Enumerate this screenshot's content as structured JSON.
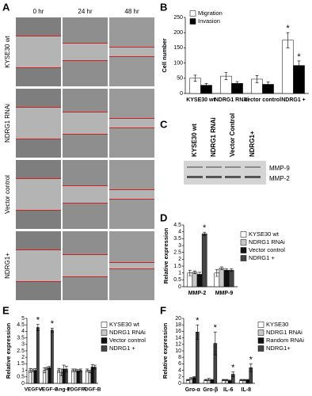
{
  "panel_labels": [
    "A",
    "B",
    "C",
    "D",
    "E",
    "F"
  ],
  "panel_a": {
    "columns": [
      "0 hr",
      "24 hr",
      "48 hr"
    ],
    "rows": [
      "KYSE30 wt",
      "NDRG1 RNAi",
      "Vector control",
      "NDRG1+"
    ]
  },
  "panel_c": {
    "lanes": [
      "KYSE30 wt",
      "NDRG1 RNAi",
      "Vector Control",
      "NDRG1+"
    ],
    "bands": [
      "MMP-9",
      "MMP-2"
    ]
  },
  "chart_data": [
    {
      "type": "bar",
      "y_label": "Cell number",
      "legend": "upper left",
      "categories": [
        "KYSE30 wt",
        "NDRG1 RNAi",
        "Vector control",
        "NDRG1 +"
      ],
      "series": [
        {
          "name": "Migration",
          "color": "#ffffff",
          "values": [
            50,
            57,
            47,
            175
          ],
          "errors": [
            10,
            12,
            12,
            25
          ]
        },
        {
          "name": "Invasion",
          "color": "#000000",
          "values": [
            27,
            33,
            30,
            92
          ],
          "errors": [
            6,
            6,
            8,
            15
          ]
        }
      ],
      "ylim": [
        0,
        250
      ],
      "yticks": [
        0,
        50,
        100,
        150,
        200,
        250
      ],
      "annotations": [
        {
          "text": "*",
          "category": "NDRG1 +",
          "series": "Migration"
        },
        {
          "text": "*",
          "category": "NDRG1 +",
          "series": "Invasion"
        }
      ]
    },
    {
      "type": "bar",
      "y_label": "Relative expression",
      "legend": "right",
      "categories": [
        "MMP-2",
        "MMP-9"
      ],
      "series": [
        {
          "name": "KYSE30 wt",
          "color": "#ffffff",
          "values": [
            1.0,
            1.0
          ],
          "errors": [
            0.2,
            0.25
          ]
        },
        {
          "name": "NDRG1 RNAi",
          "color": "#c8c8c8",
          "values": [
            1.05,
            1.35
          ],
          "errors": [
            0.1,
            0.1
          ]
        },
        {
          "name": "Vector control",
          "color": "#111111",
          "values": [
            0.9,
            1.2
          ],
          "errors": [
            0.15,
            0.1
          ]
        },
        {
          "name": "NDRG1 +",
          "color": "#444444",
          "values": [
            3.85,
            1.2
          ],
          "errors": [
            0.12,
            0.1
          ]
        }
      ],
      "ylim": [
        0,
        4.5
      ],
      "yticks": [
        0,
        0.5,
        1,
        1.5,
        2,
        2.5,
        3,
        3.5,
        4,
        4.5
      ],
      "annotations": [
        {
          "text": "*",
          "category": "MMP-2",
          "series": "NDRG1 +"
        }
      ]
    },
    {
      "type": "bar",
      "y_label": "Relative expression",
      "legend": "right",
      "categories": [
        "VEGF-A",
        "VEGF-C",
        "Ang-1",
        "PDGF-A",
        "PDGF-B"
      ],
      "series": [
        {
          "name": "KYSE30 wt",
          "color": "#ffffff",
          "values": [
            1,
            1,
            1,
            1,
            1
          ],
          "errors": [
            0.15,
            0.2,
            0.15,
            0.1,
            0.1
          ]
        },
        {
          "name": "NDRG1 RNAi",
          "color": "#c8c8c8",
          "values": [
            1,
            1.15,
            0.85,
            1,
            0.9
          ],
          "errors": [
            0.1,
            0.1,
            0.25,
            0.1,
            0.1
          ]
        },
        {
          "name": "Vector control",
          "color": "#111111",
          "values": [
            1,
            1.2,
            1.1,
            0.95,
            1.25
          ],
          "errors": [
            0.15,
            0.1,
            0.3,
            0.1,
            0.2
          ]
        },
        {
          "name": "NDRG1 +",
          "color": "#444444",
          "values": [
            4.3,
            4.1,
            1.1,
            1,
            1.25
          ],
          "errors": [
            0.25,
            0.15,
            0.2,
            0.1,
            0.15
          ]
        }
      ],
      "ylim": [
        0,
        5
      ],
      "yticks": [
        0,
        0.5,
        1,
        1.5,
        2,
        2.5,
        3,
        3.5,
        4,
        4.5,
        5
      ],
      "annotations": [
        {
          "text": "*",
          "category": "VEGF-A",
          "series": "NDRG1 +"
        },
        {
          "text": "*",
          "category": "VEGF-C",
          "series": "NDRG1 +"
        }
      ]
    },
    {
      "type": "bar",
      "y_label": "Relative expression",
      "legend": "right",
      "categories": [
        "Gro-α",
        "Gro-β",
        "IL-6",
        "IL-8"
      ],
      "series": [
        {
          "name": "KYSE30",
          "color": "#ffffff",
          "values": [
            1,
            1,
            1,
            1
          ],
          "errors": [
            0.2,
            0.2,
            0.2,
            0.2
          ]
        },
        {
          "name": "NDRG1 RNAi",
          "color": "#c8c8c8",
          "values": [
            1.5,
            1.2,
            1,
            1
          ],
          "errors": [
            0.3,
            0.3,
            0.2,
            0.2
          ]
        },
        {
          "name": "Random RNAi",
          "color": "#111111",
          "values": [
            1.8,
            1,
            0.8,
            1
          ],
          "errors": [
            0.3,
            0.2,
            0.2,
            0.2
          ]
        },
        {
          "name": "NDRG1+",
          "color": "#444444",
          "values": [
            15.8,
            12.3,
            2.8,
            4.8
          ],
          "errors": [
            2.2,
            3.5,
            0.7,
            1.2
          ]
        }
      ],
      "ylim": [
        0,
        20
      ],
      "yticks": [
        0,
        2,
        4,
        6,
        8,
        10,
        12,
        14,
        16,
        18,
        20
      ],
      "annotations": [
        {
          "text": "*",
          "category": "Gro-α",
          "series": "NDRG1+"
        },
        {
          "text": "*",
          "category": "Gro-β",
          "series": "NDRG1+"
        },
        {
          "text": "*",
          "category": "IL-6",
          "series": "NDRG1+"
        },
        {
          "text": "*",
          "category": "IL-8",
          "series": "NDRG1+"
        }
      ]
    }
  ]
}
